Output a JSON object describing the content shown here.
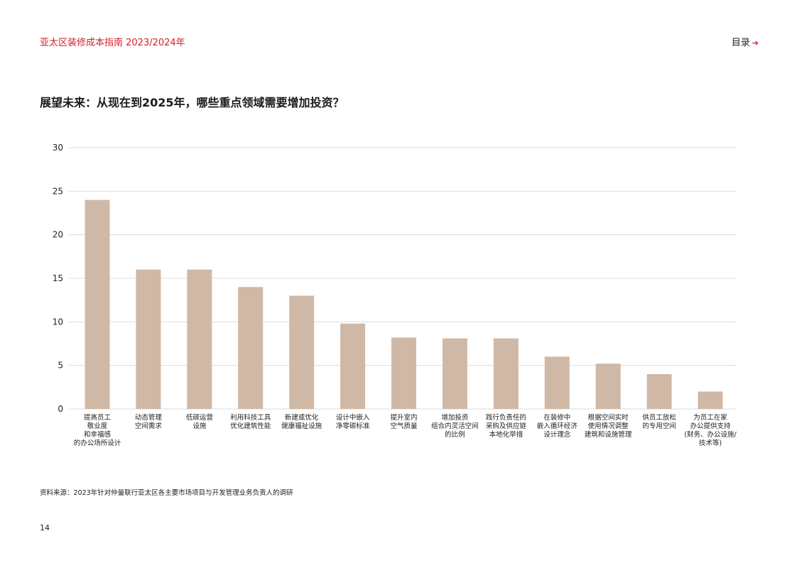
{
  "header": {
    "title": "亚太区装修成本指南 2023/2024年",
    "toc_label": "目录",
    "toc_arrow": "➔"
  },
  "chart_data": {
    "type": "bar",
    "title": "展望未来：从现在到2025年，哪些重点领域需要增加投资？",
    "xlabel": "",
    "ylabel": "",
    "ylim": [
      0,
      30
    ],
    "yticks": [
      0,
      5,
      10,
      15,
      20,
      25,
      30
    ],
    "grid": true,
    "bar_color": "#d0b8a7",
    "categories": [
      "提高员工\n敬业度\n和幸福感\n的办公场所设计",
      "动态管理\n空间需求",
      "低碳运营\n设施",
      "利用科技工具\n优化建筑性能",
      "新建或优化\n健康福祉设施",
      "设计中嵌入\n净零碳标准",
      "提升室内\n空气质量",
      "增加投资\n组合内灵活空间\n的比例",
      "践行负责任的\n采购及供应链\n本地化举措",
      "在装修中\n嵌入循环经济\n设计理念",
      "根据空间实时\n使用情况调整\n建筑和设施管理",
      "供员工放松\n的专用空间",
      "为员工在家\n办公提供支持\n(财务、办公设施/\n技术等)"
    ],
    "values": [
      24,
      16,
      16,
      14,
      13,
      9.8,
      8.2,
      8.1,
      8.1,
      6,
      5.2,
      4,
      2
    ]
  },
  "footer": {
    "source": "资料来源：2023年针对仲量联行亚太区各主要市场项目与开发管理业务负责人的调研",
    "page_number": "14"
  }
}
